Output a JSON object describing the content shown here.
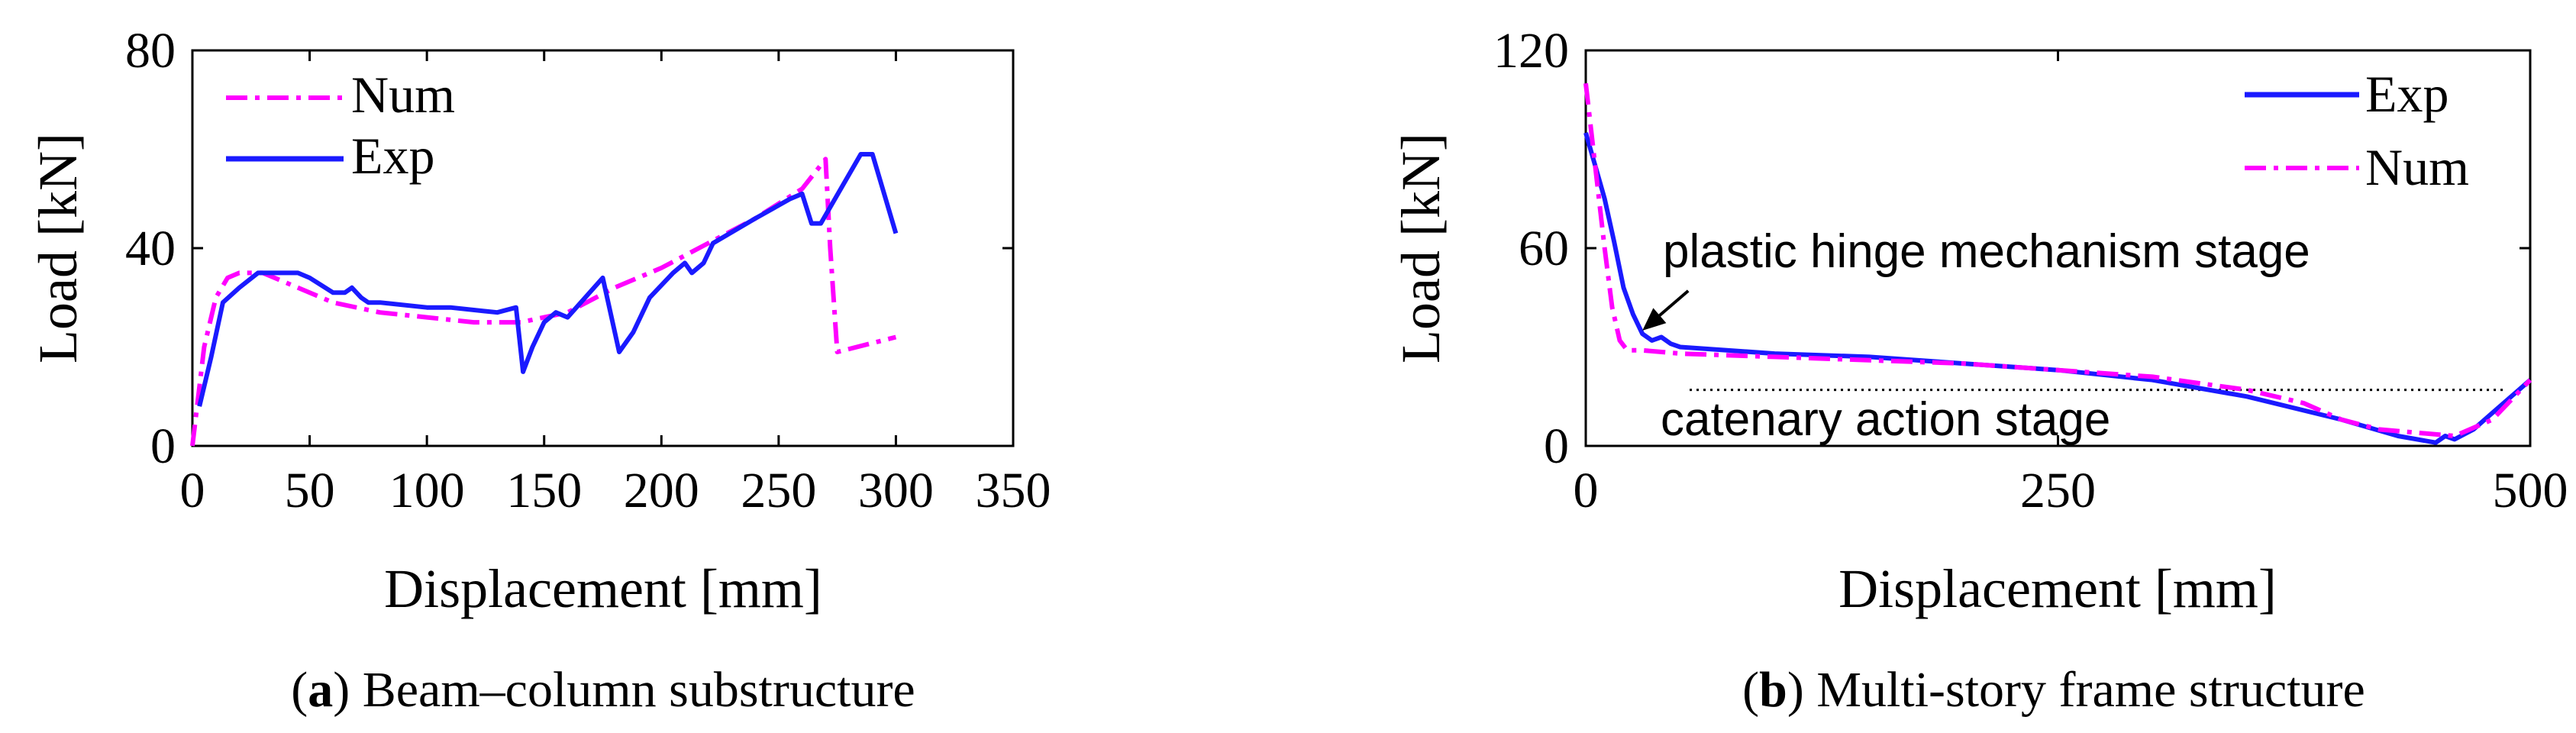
{
  "colors": {
    "exp": "#1a1aff",
    "num": "#ff00ff",
    "axis": "#000000"
  },
  "chart_data": [
    {
      "type": "line",
      "panel": "a",
      "caption_letter": "a",
      "caption_text": ") Beam–column substructure",
      "xlabel": "Displacement [mm]",
      "ylabel": "Load [kN]",
      "xlim": [
        0,
        350
      ],
      "ylim": [
        0,
        80
      ],
      "xticks": [
        0,
        50,
        100,
        150,
        200,
        250,
        300,
        350
      ],
      "yticks": [
        0,
        40,
        80
      ],
      "legend_position": "top-left",
      "series": [
        {
          "name": "Num",
          "style": "dashdot",
          "color_key": "num",
          "x": [
            0,
            5,
            10,
            15,
            20,
            30,
            40,
            60,
            80,
            100,
            120,
            140,
            150,
            160,
            180,
            200,
            220,
            240,
            260,
            265,
            270,
            272,
            275,
            300
          ],
          "y": [
            0,
            20,
            30,
            34,
            35,
            35,
            33,
            29,
            27,
            26,
            25,
            25,
            26,
            27,
            32,
            36,
            41,
            46,
            52,
            55,
            58,
            40,
            19,
            22
          ]
        },
        {
          "name": "Exp",
          "style": "solid",
          "color_key": "exp",
          "x": [
            3,
            8,
            13,
            20,
            28,
            35,
            45,
            50,
            60,
            65,
            68,
            72,
            75,
            80,
            100,
            110,
            130,
            138,
            141,
            145,
            150,
            155,
            160,
            175,
            182,
            188,
            195,
            205,
            210,
            213,
            218,
            222,
            240,
            255,
            260,
            264,
            268,
            285,
            290,
            300
          ],
          "y": [
            8,
            18,
            29,
            32,
            35,
            35,
            35,
            34,
            31,
            31,
            32,
            30,
            29,
            29,
            28,
            28,
            27,
            28,
            15,
            20,
            25,
            27,
            26,
            34,
            19,
            23,
            30,
            35,
            37,
            35,
            37,
            41,
            46,
            50,
            51,
            45,
            45,
            59,
            59,
            43
          ]
        }
      ]
    },
    {
      "type": "line",
      "panel": "b",
      "caption_letter": "b",
      "caption_text": ") Multi-story frame structure",
      "xlabel": "Displacement [mm]",
      "ylabel": "Load [kN]",
      "xlim": [
        0,
        500
      ],
      "ylim": [
        0,
        120
      ],
      "xticks": [
        0,
        250,
        500
      ],
      "yticks": [
        0,
        60,
        120
      ],
      "legend_position": "top-right",
      "annotations": {
        "plastic_hinge": "plastic hinge mechanism stage",
        "catenary": "catenary action stage"
      },
      "reference_line": {
        "x": [
          55,
          500
        ],
        "y": [
          17,
          17
        ]
      },
      "arrow_target": {
        "x": 30,
        "y": 35
      },
      "series": [
        {
          "name": "Exp",
          "style": "solid",
          "color_key": "exp",
          "x": [
            0,
            5,
            10,
            15,
            20,
            25,
            30,
            35,
            40,
            45,
            50,
            100,
            150,
            200,
            250,
            300,
            350,
            400,
            430,
            450,
            455,
            460,
            470,
            480,
            500
          ],
          "y": [
            95,
            85,
            75,
            62,
            48,
            40,
            34,
            32,
            33,
            31,
            30,
            28,
            27,
            25,
            23,
            20,
            15,
            8,
            3,
            1,
            3,
            2,
            5,
            10,
            20
          ]
        },
        {
          "name": "Num",
          "style": "dashdot",
          "color_key": "num",
          "x": [
            0,
            3,
            6,
            10,
            14,
            18,
            22,
            30,
            50,
            100,
            150,
            200,
            250,
            300,
            350,
            380,
            400,
            420,
            440,
            460,
            480,
            500
          ],
          "y": [
            110,
            95,
            80,
            60,
            42,
            32,
            29,
            29,
            28,
            27,
            26,
            25,
            23,
            21,
            17,
            13,
            8,
            5,
            4,
            3,
            8,
            20
          ]
        }
      ]
    }
  ]
}
